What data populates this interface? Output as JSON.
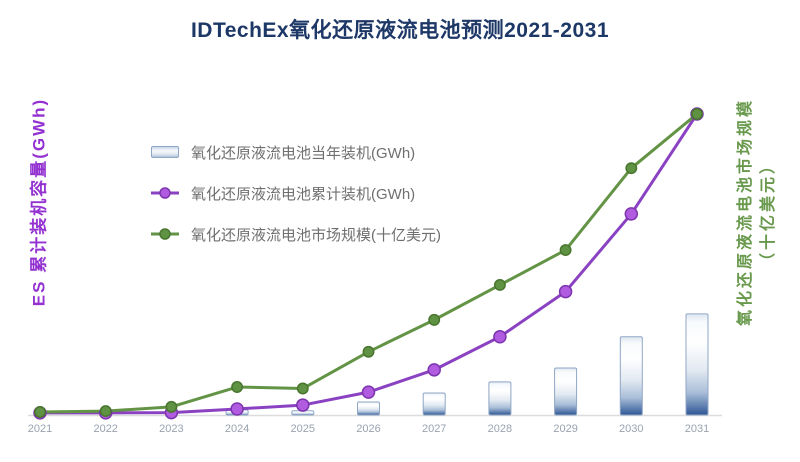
{
  "title": "IDTechEx氧化还原液流电池预测2021-2031",
  "axes": {
    "left_label": "ES 累计装机容量(GWh)",
    "right_label_line1": "氧化还原液流电池市场规模",
    "right_label_line2": "（十亿美元）",
    "x_tick_labels": [
      "2021",
      "2022",
      "2023",
      "2024",
      "2025",
      "2026",
      "2027",
      "2028",
      "2029",
      "2030",
      "2031"
    ]
  },
  "legend": {
    "items": [
      {
        "label": "氧化还原液流电池当年装机(GWh)",
        "type": "bar"
      },
      {
        "label": "氧化还原液流电池累计装机(GWh)",
        "type": "line",
        "line_color": "#8a42c2",
        "marker_fill": "#b15ce0",
        "marker_stroke": "#7c35ad"
      },
      {
        "label": "氧化还原液流电池市场规模(十亿美元)",
        "type": "line",
        "line_color": "#639345",
        "marker_fill": "#5f9343",
        "marker_stroke": "#49752f"
      }
    ]
  },
  "colors": {
    "title": "#1d3767",
    "left_axis_label": "#9331d1",
    "right_axis_label": "#69994d",
    "legend_text": "#6f6f6f",
    "x_tick": "#9aa3b0",
    "axis_line": "#dcdcdc",
    "bar_border": "#8fa6c6",
    "bar_gradient": [
      "#dde6f0",
      "#f7fafc",
      "#ffffff",
      "#e3eaf2",
      "#a9bed8",
      "#2e5694"
    ],
    "cumulative_line": "#8a42c2",
    "market_line": "#639345"
  },
  "chart_data": {
    "type": "combo (bar + two line series)",
    "title": "IDTechEx氧化还原液流电池预测2021-2031",
    "categories": [
      "2021",
      "2022",
      "2023",
      "2024",
      "2025",
      "2026",
      "2027",
      "2028",
      "2029",
      "2030",
      "2031"
    ],
    "xlabel": "",
    "ylabel_left": "ES 累计装机容量(GWh)",
    "ylabel_right": "氧化还原液流电池市场规模（十亿美元）",
    "value_note": "no numeric axis ticks shown; values are relative units read from pixel heights, 100 = 2031 line peak",
    "ylim": [
      0,
      100
    ],
    "grid": false,
    "legend_position": "upper-left inside plot",
    "series": [
      {
        "name": "氧化还原液流电池当年装机(GWh)",
        "type": "bar",
        "axis": "left",
        "values": [
          0,
          0,
          0,
          1.7,
          1.4,
          4.3,
          7.3,
          11.0,
          15.6,
          26.0,
          33.6
        ]
      },
      {
        "name": "氧化还原液流电池累计装机(GWh)",
        "type": "line",
        "axis": "left",
        "values": [
          0.7,
          0.7,
          0.8,
          2.0,
          3.3,
          7.6,
          15.0,
          26.0,
          41.0,
          66.8,
          100
        ]
      },
      {
        "name": "氧化还原液流电池市场规模(十亿美元)",
        "type": "line",
        "axis": "right",
        "values": [
          1.0,
          1.3,
          2.7,
          9.3,
          8.8,
          21.0,
          31.6,
          43.2,
          54.8,
          82.0,
          100
        ]
      }
    ]
  }
}
